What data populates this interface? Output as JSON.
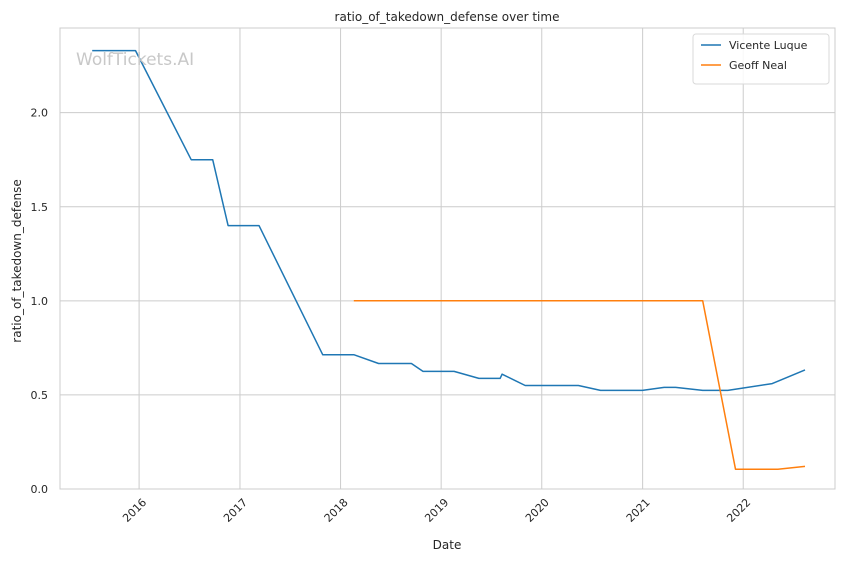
{
  "chart_data": {
    "type": "line",
    "title": "ratio_of_takedown_defense over time",
    "xlabel": "Date",
    "ylabel": "ratio_of_takedown_defense",
    "watermark": "WolfTickets.AI",
    "x_ticks": [
      "2016",
      "2017",
      "2018",
      "2019",
      "2020",
      "2021",
      "2022"
    ],
    "y_ticks": [
      "0.0",
      "0.5",
      "1.0",
      "1.5",
      "2.0"
    ],
    "xlim": [
      "2015-03-20",
      "2022-11-30"
    ],
    "ylim": [
      0,
      2.45
    ],
    "grid": true,
    "legend_position": "top-right",
    "series": [
      {
        "name": "Vicente Luque",
        "color": "#1f77b4",
        "points": [
          [
            "2015-07-15",
            2.33
          ],
          [
            "2015-12-19",
            2.33
          ],
          [
            "2016-07-08",
            1.75
          ],
          [
            "2016-09-24",
            1.75
          ],
          [
            "2016-11-19",
            1.4
          ],
          [
            "2017-03-11",
            1.4
          ],
          [
            "2017-10-28",
            0.714
          ],
          [
            "2018-02-18",
            0.714
          ],
          [
            "2018-05-19",
            0.667
          ],
          [
            "2018-09-15",
            0.667
          ],
          [
            "2018-10-27",
            0.625
          ],
          [
            "2019-02-17",
            0.625
          ],
          [
            "2019-05-18",
            0.588
          ],
          [
            "2019-08-03",
            0.588
          ],
          [
            "2019-08-10",
            0.61
          ],
          [
            "2019-11-02",
            0.55
          ],
          [
            "2020-05-13",
            0.55
          ],
          [
            "2020-08-01",
            0.524
          ],
          [
            "2020-12-31",
            0.524
          ],
          [
            "2021-03-20",
            0.54
          ],
          [
            "2021-05-01",
            0.54
          ],
          [
            "2021-08-07",
            0.524
          ],
          [
            "2021-11-06",
            0.524
          ],
          [
            "2022-04-16",
            0.56
          ],
          [
            "2022-08-13",
            0.633
          ]
        ]
      },
      {
        "name": "Geoff Neal",
        "color": "#ff7f0e",
        "points": [
          [
            "2018-02-18",
            1.0
          ],
          [
            "2021-08-07",
            1.0
          ],
          [
            "2021-12-04",
            0.105
          ],
          [
            "2022-05-07",
            0.105
          ],
          [
            "2022-08-13",
            0.12
          ]
        ]
      }
    ]
  }
}
